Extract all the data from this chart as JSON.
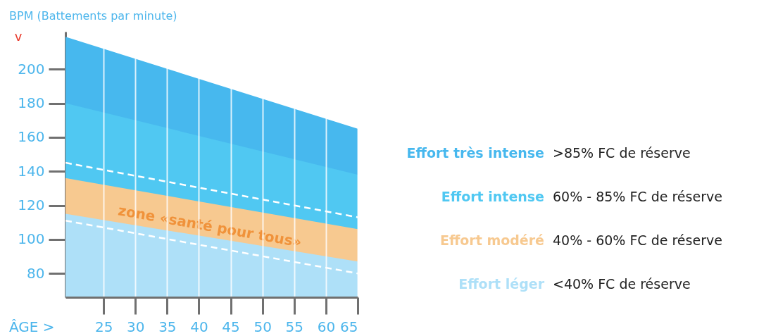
{
  "chart_data": {
    "type": "area",
    "xlabel": "ÂGE >",
    "ylabel": "BPM (Battements par minute)",
    "x": [
      19,
      65
    ],
    "series": [
      {
        "name": "Effort très intense",
        "color": "#47b8ee",
        "values": [
          219,
          165
        ]
      },
      {
        "name": "Effort intense",
        "color": "#50c8f2",
        "values": [
          180,
          138
        ]
      },
      {
        "name": "Effort modéré",
        "color": "#f7c990",
        "values": [
          136,
          106
        ]
      },
      {
        "name": "Effort léger",
        "color": "#aee0f8",
        "values": [
          115,
          87
        ]
      },
      {
        "type": "line",
        "color": "#ffffff",
        "line_style": "dashed",
        "values": [
          145,
          113
        ]
      },
      {
        "type": "line",
        "color": "#ffffff",
        "line_style": "dashed",
        "values": [
          111,
          80
        ]
      }
    ],
    "xlim": [
      19,
      65
    ],
    "ylim": [
      66,
      222
    ],
    "xticks": [
      25,
      30,
      35,
      40,
      45,
      50,
      55,
      60,
      65
    ],
    "yticks": [
      80,
      100,
      120,
      140,
      160,
      180,
      200
    ],
    "grid": "x",
    "legend": "right",
    "annotations": [
      ">85% FC de réserve",
      "60% - 85% FC de réserve",
      "40% - 60% FC de réserve",
      "<40% FC de réserve",
      "zone «santé pour tous»",
      "v"
    ]
  }
}
